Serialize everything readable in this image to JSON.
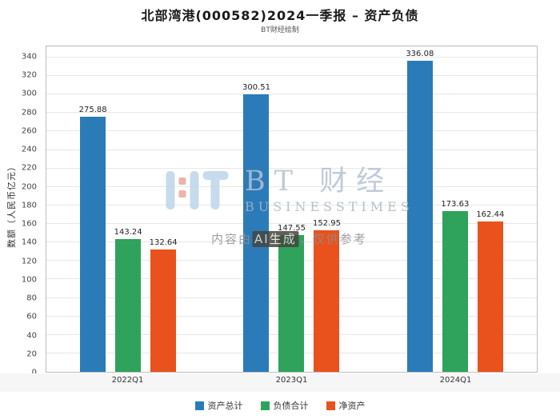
{
  "title": "北部湾港(000582)2024一季报 – 资产负债",
  "subtitle": "BT财经绘制",
  "watermark": {
    "logo_icon": "bt-grid-logo",
    "brand": "BT 财经",
    "brand_sub": "BUSINESSTIMES",
    "disclaimer_prefix": "内容由",
    "disclaimer_highlight": "AI生成",
    "disclaimer_suffix": "，仅供参考"
  },
  "chart_data": {
    "type": "bar",
    "categories": [
      "2022Q1",
      "2023Q1",
      "2024Q1"
    ],
    "series": [
      {
        "name": "资产总计",
        "color": "#2B7BB9",
        "values": [
          275.88,
          300.51,
          336.08
        ]
      },
      {
        "name": "负债合计",
        "color": "#2FA25C",
        "values": [
          143.24,
          147.55,
          173.63
        ]
      },
      {
        "name": "净资产",
        "color": "#E9511D",
        "values": [
          132.64,
          152.95,
          162.44
        ]
      }
    ],
    "title": "北部湾港(000582)2024一季报 – 资产负债",
    "xlabel": "",
    "ylabel": "数额（人民币亿元）",
    "ylim": [
      0,
      352
    ],
    "ytick_step": 20,
    "ytick_max": 340,
    "grid": true,
    "legend_position": "bottom"
  }
}
